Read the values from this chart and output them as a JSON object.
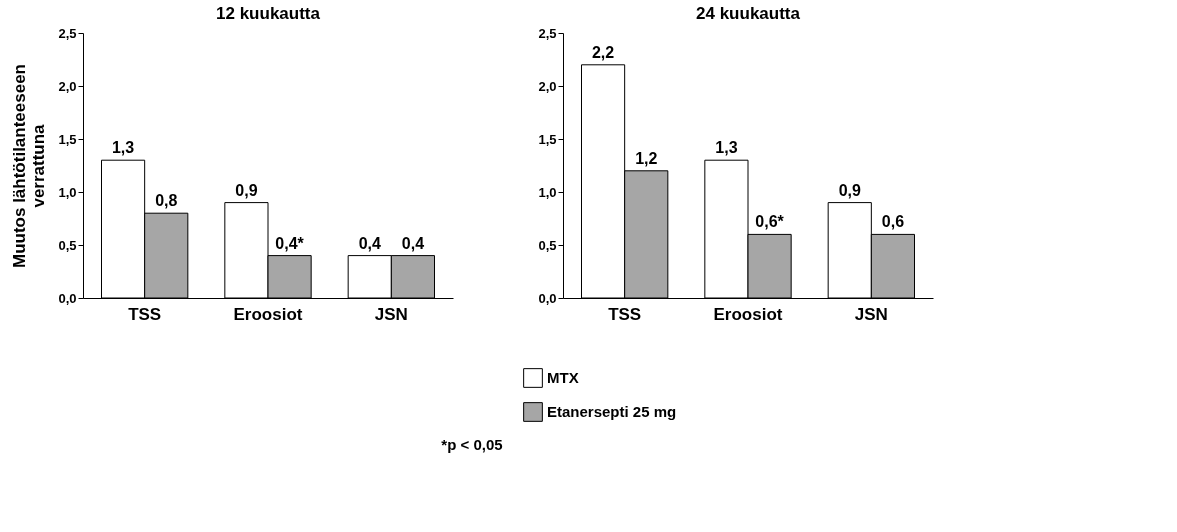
{
  "chart_data": [
    {
      "type": "bar",
      "title": "12 kuukautta",
      "ylabel": "Muutos lähtötilanteeseen verrattuna",
      "categories": [
        "TSS",
        "Eroosiot",
        "JSN"
      ],
      "series": [
        {
          "name": "MTX",
          "color": "#ffffff",
          "values": [
            1.3,
            0.9,
            0.4
          ],
          "value_labels": [
            "1,3",
            "0,9",
            "0,4"
          ]
        },
        {
          "name": "Etanersepti 25 mg",
          "color": "#a6a6a6",
          "values": [
            0.8,
            0.4,
            0.4
          ],
          "value_labels": [
            "0,8",
            "0,4*",
            "0,4"
          ]
        }
      ],
      "ylim": [
        0,
        2.5
      ],
      "yticks": [
        {
          "value": 0,
          "label": "0,0"
        },
        {
          "value": 0.5,
          "label": "0,5"
        },
        {
          "value": 1,
          "label": "1,0"
        },
        {
          "value": 1.5,
          "label": "1,5"
        },
        {
          "value": 2,
          "label": "2,0"
        },
        {
          "value": 2.5,
          "label": "2,5"
        }
      ],
      "grid": false,
      "legend": "bottom",
      "annotations": [
        "*p < 0,05"
      ]
    },
    {
      "type": "bar",
      "title": "24 kuukautta",
      "categories": [
        "TSS",
        "Eroosiot",
        "JSN"
      ],
      "series": [
        {
          "color": "#ffffff",
          "values": [
            2.2,
            1.3,
            0.9
          ],
          "value_labels": [
            "2,2",
            "1,3",
            "0,9"
          ]
        },
        {
          "color": "#a6a6a6",
          "values": [
            1.2,
            0.6,
            0.6
          ],
          "value_labels": [
            "1,2",
            "0,6*",
            "0,6"
          ]
        }
      ],
      "ylim": [
        0,
        2.5
      ],
      "yticks": [
        {
          "value": 0,
          "label": "0,0"
        },
        {
          "value": 0.5,
          "label": "0,5"
        },
        {
          "value": 1,
          "label": "1,0"
        },
        {
          "value": 1.5,
          "label": "1,5"
        },
        {
          "value": 2,
          "label": "2,0"
        },
        {
          "value": 2.5,
          "label": "2,5"
        }
      ],
      "grid": false
    }
  ]
}
